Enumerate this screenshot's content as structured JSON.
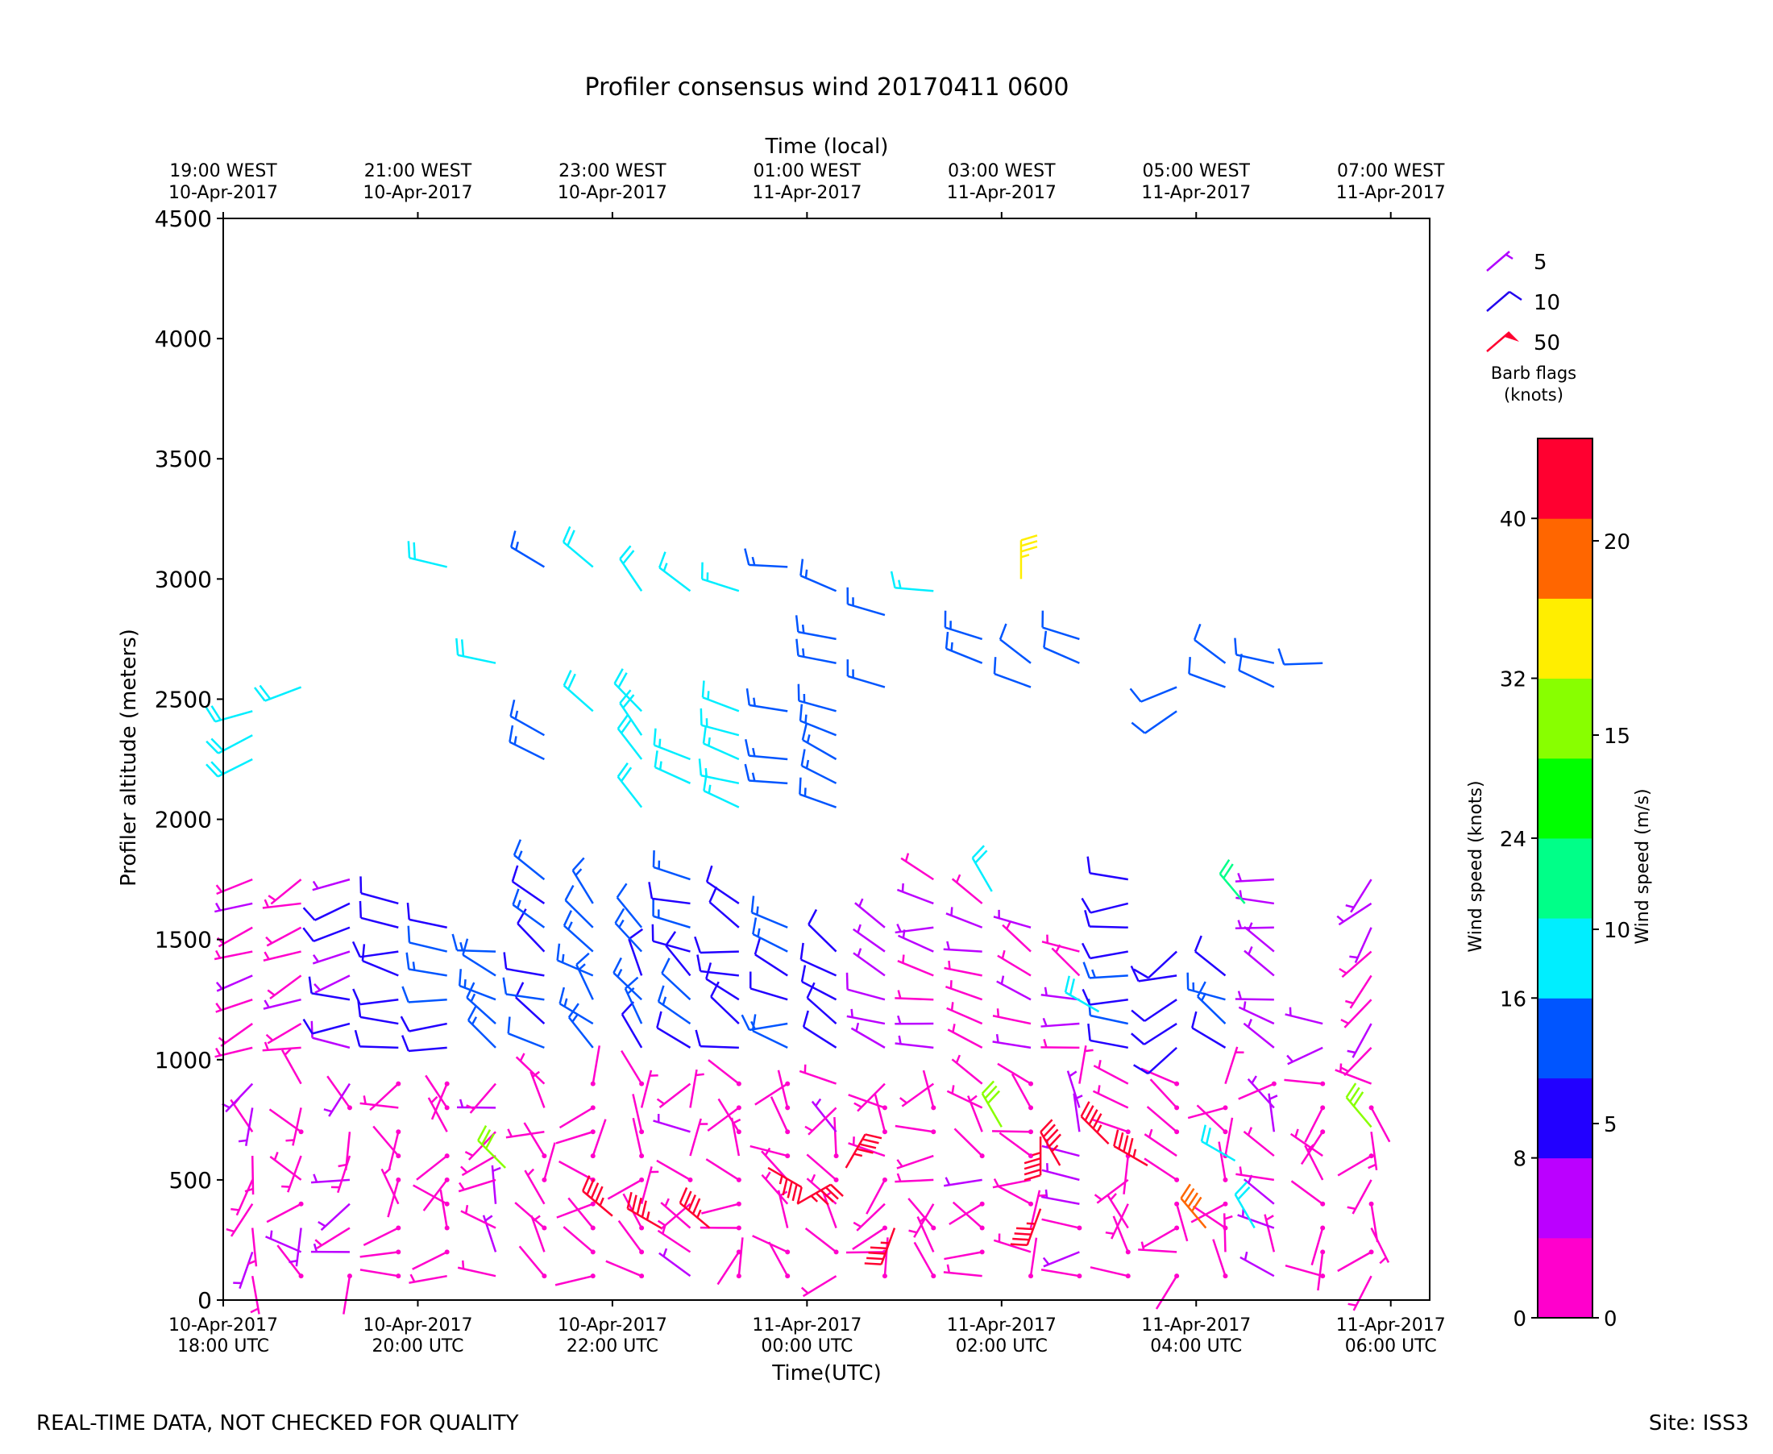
{
  "page": {
    "title": "Profiler consensus wind 20170411 0600",
    "footer_left": "REAL-TIME DATA, NOT CHECKED FOR QUALITY",
    "footer_right": "Site: ISS3"
  },
  "chart_data": {
    "type": "wind_barb_time_height",
    "title": "Profiler consensus wind 20170411 0600",
    "xlabel": "Time(UTC)",
    "x2label": "Time (local)",
    "ylabel": "Profiler altitude (meters)",
    "ylim": [
      0,
      4500
    ],
    "xlim_hours": [
      0,
      6.2
    ],
    "yticks": [
      0,
      500,
      1000,
      1500,
      2000,
      2500,
      3000,
      3500,
      4000,
      4500
    ],
    "xticks_utc": [
      {
        "h": 0,
        "date": "10-Apr-2017",
        "time": "18:00 UTC"
      },
      {
        "h": 1,
        "date": "10-Apr-2017",
        "time": "20:00 UTC"
      },
      {
        "h": 2,
        "date": "10-Apr-2017",
        "time": "22:00 UTC"
      },
      {
        "h": 3,
        "date": "11-Apr-2017",
        "time": "00:00 UTC"
      },
      {
        "h": 4,
        "date": "11-Apr-2017",
        "time": "02:00 UTC"
      },
      {
        "h": 5,
        "date": "11-Apr-2017",
        "time": "04:00 UTC"
      },
      {
        "h": 6,
        "date": "11-Apr-2017",
        "time": "06:00 UTC"
      }
    ],
    "xticks_local": [
      {
        "h": 0,
        "time": "19:00 WEST",
        "date": "10-Apr-2017"
      },
      {
        "h": 1,
        "time": "21:00 WEST",
        "date": "10-Apr-2017"
      },
      {
        "h": 2,
        "time": "23:00 WEST",
        "date": "10-Apr-2017"
      },
      {
        "h": 3,
        "time": "01:00 WEST",
        "date": "11-Apr-2017"
      },
      {
        "h": 4,
        "time": "03:00 WEST",
        "date": "11-Apr-2017"
      },
      {
        "h": 5,
        "time": "05:00 WEST",
        "date": "11-Apr-2017"
      },
      {
        "h": 6,
        "time": "07:00 WEST",
        "date": "11-Apr-2017"
      }
    ],
    "legend": {
      "title_line1": "Barb flags",
      "title_line2": "(knots)",
      "entries": [
        {
          "label": "5",
          "speed": 5,
          "color": "#b000ff"
        },
        {
          "label": "10",
          "speed": 10,
          "color": "#2200ee"
        },
        {
          "label": "50",
          "speed": 50,
          "color": "#ff0030"
        }
      ]
    },
    "colorbar": {
      "left_label": "Wind speed (knots)",
      "right_label": "Wind speed (m/s)",
      "knot_ticks": [
        "0",
        "8",
        "16",
        "24",
        "32",
        "40"
      ],
      "ms_ticks": [
        "0",
        "5",
        "10",
        "15",
        "20"
      ],
      "colors": [
        "#ff00cc",
        "#bb00ff",
        "#2200ff",
        "#0055ff",
        "#00eeff",
        "#00ff88",
        "#00ff00",
        "#88ff00",
        "#ffee00",
        "#ff6600",
        "#ff0030"
      ]
    },
    "level_sets": {
      "boundary_layer": [
        100,
        200,
        300,
        400,
        500,
        600,
        700,
        800,
        900
      ],
      "mid_layer": [
        1050,
        1150,
        1250,
        1350,
        1450,
        1550,
        1650,
        1750
      ],
      "upper_layer": [
        2050,
        2150,
        2250,
        2350,
        2450,
        2550,
        2650,
        2750,
        2850,
        2950,
        3050
      ]
    },
    "profiles": [
      {
        "t": 0.15,
        "dir": 250,
        "low_spd": 4,
        "mid_spd": 4,
        "up_spd": 18,
        "mid_top": 1850,
        "up": [
          2250,
          2350,
          2450
        ]
      },
      {
        "t": 0.4,
        "dir": 255,
        "low_spd": 3,
        "mid_spd": 3,
        "up_spd": 18,
        "mid_top": 1950,
        "up": [
          2550
        ]
      },
      {
        "t": 0.65,
        "dir": 260,
        "low_spd": 3,
        "mid_spd": 8,
        "up_spd": 16,
        "mid_top": 1750
      },
      {
        "t": 0.9,
        "dir": 270,
        "low_spd": 2,
        "mid_spd": 10,
        "up_spd": 16,
        "mid_top": 1650
      },
      {
        "t": 1.15,
        "dir": 280,
        "low_spd": 2,
        "mid_spd": 12,
        "up_spd": 18,
        "mid_top": 1550,
        "up": [
          3050
        ]
      },
      {
        "t": 1.4,
        "dir": 290,
        "low_spd": 5,
        "mid_spd": 14,
        "up_spd": 18,
        "mid_top": 1450,
        "up": [
          2650
        ]
      },
      {
        "t": 1.65,
        "dir": 300,
        "low_spd": 2,
        "mid_spd": 12,
        "up_spd": 14,
        "mid_top": 1750,
        "up": [
          2250,
          2350,
          3050
        ]
      },
      {
        "t": 1.9,
        "dir": 310,
        "low_spd": 2,
        "mid_spd": 14,
        "up_spd": 18,
        "mid_top": 1650,
        "up": [
          2450,
          3050
        ]
      },
      {
        "t": 2.15,
        "dir": 320,
        "low_spd": 2,
        "mid_spd": 12,
        "up_spd": 18,
        "mid_top": 1550,
        "up": [
          2050,
          2250,
          2350,
          2450,
          2950
        ]
      },
      {
        "t": 2.4,
        "dir": 300,
        "low_spd": 3,
        "mid_spd": 12,
        "up_spd": 16,
        "mid_top": 1750,
        "up": [
          2150,
          2250,
          2950
        ]
      },
      {
        "t": 2.65,
        "dir": 290,
        "low_spd": 2,
        "mid_spd": 10,
        "up_spd": 16,
        "mid_top": 1650,
        "up": [
          2050,
          2150,
          2250,
          2350,
          2450,
          2950
        ]
      },
      {
        "t": 2.9,
        "dir": 280,
        "low_spd": 2,
        "mid_spd": 12,
        "up_spd": 14,
        "mid_top": 1550,
        "up": [
          2150,
          2250,
          2450,
          3050
        ]
      },
      {
        "t": 3.15,
        "dir": 290,
        "low_spd": 3,
        "mid_spd": 10,
        "up_spd": 14,
        "mid_top": 1450,
        "up": [
          2050,
          2150,
          2250,
          2350,
          2450,
          2650,
          2750,
          2950
        ]
      },
      {
        "t": 3.4,
        "dir": 285,
        "low_spd": 2,
        "mid_spd": 6,
        "up_spd": 14,
        "mid_top": 1550,
        "up": [
          2550,
          2850
        ]
      },
      {
        "t": 3.65,
        "dir": 280,
        "low_spd": 2,
        "mid_spd": 4,
        "up_spd": 16,
        "mid_top": 1850,
        "up": [
          2950
        ]
      },
      {
        "t": 3.9,
        "dir": 285,
        "low_spd": 3,
        "mid_spd": 4,
        "up_spd": 14,
        "mid_top": 1650,
        "up": [
          2650,
          2750
        ]
      },
      {
        "t": 4.15,
        "dir": 300,
        "low_spd": 2,
        "mid_spd": 4,
        "up_spd": 12,
        "mid_top": 1550,
        "up": [
          2550,
          2650
        ]
      },
      {
        "t": 4.4,
        "dir": 290,
        "low_spd": 3,
        "mid_spd": 5,
        "up_spd": 12,
        "mid_top": 1450,
        "up": [
          2650,
          2750
        ]
      },
      {
        "t": 4.65,
        "dir": 260,
        "low_spd": 2,
        "mid_spd": 12,
        "up_spd": 12,
        "mid_top": 1850
      },
      {
        "t": 4.9,
        "dir": 240,
        "low_spd": 2,
        "mid_spd": 10,
        "up_spd": 12,
        "mid_top": 1450,
        "up": [
          2450,
          2550
        ]
      },
      {
        "t": 5.15,
        "dir": 300,
        "low_spd": 2,
        "mid_spd": 12,
        "up_spd": 12,
        "mid_top": 1350,
        "up": [
          2550,
          2650
        ]
      },
      {
        "t": 5.4,
        "dir": 290,
        "low_spd": 4,
        "mid_spd": 6,
        "up_spd": 12,
        "mid_top": 1850,
        "up": [
          2550,
          2650
        ]
      },
      {
        "t": 5.65,
        "dir": 260,
        "low_spd": 2,
        "mid_spd": 6,
        "up_spd": 12,
        "mid_top": 1150,
        "up": [
          2650
        ]
      },
      {
        "t": 5.9,
        "dir": 220,
        "low_spd": 2,
        "mid_spd": 3,
        "up_spd": 12,
        "mid_top": 1850
      }
    ],
    "strong_low_winds": [
      {
        "t": 1.45,
        "alt": 550,
        "dir": 315,
        "spd": 28
      },
      {
        "t": 2.0,
        "alt": 350,
        "dir": 310,
        "spd": 45
      },
      {
        "t": 2.25,
        "alt": 300,
        "dir": 300,
        "spd": 45
      },
      {
        "t": 2.5,
        "alt": 300,
        "dir": 310,
        "spd": 45
      },
      {
        "t": 2.8,
        "alt": 550,
        "dir": 120,
        "spd": 45
      },
      {
        "t": 2.95,
        "alt": 400,
        "dir": 60,
        "spd": 45
      },
      {
        "t": 3.2,
        "alt": 550,
        "dir": 30,
        "spd": 45
      },
      {
        "t": 3.45,
        "alt": 300,
        "dir": 200,
        "spd": 45
      },
      {
        "t": 4.2,
        "alt": 380,
        "dir": 200,
        "spd": 45
      },
      {
        "t": 4.2,
        "alt": 680,
        "dir": 180,
        "spd": 45
      },
      {
        "t": 4.3,
        "alt": 560,
        "dir": 330,
        "spd": 45
      },
      {
        "t": 4.55,
        "alt": 650,
        "dir": 315,
        "spd": 45
      },
      {
        "t": 4.75,
        "alt": 560,
        "dir": 300,
        "spd": 45
      },
      {
        "t": 4.0,
        "alt": 720,
        "dir": 330,
        "spd": 28
      },
      {
        "t": 5.05,
        "alt": 300,
        "dir": 320,
        "spd": 38
      },
      {
        "t": 5.2,
        "alt": 580,
        "dir": 300,
        "spd": 18
      },
      {
        "t": 5.3,
        "alt": 300,
        "dir": 330,
        "spd": 18
      },
      {
        "t": 5.9,
        "alt": 720,
        "dir": 320,
        "spd": 28
      },
      {
        "t": 5.25,
        "alt": 1650,
        "dir": 320,
        "spd": 22
      },
      {
        "t": 4.5,
        "alt": 1200,
        "dir": 300,
        "spd": 18
      },
      {
        "t": 3.95,
        "alt": 1700,
        "dir": 330,
        "spd": 18
      }
    ],
    "top_extra": [
      {
        "t": 4.1,
        "alt": 3000,
        "dir": 0,
        "spd": 34
      }
    ]
  }
}
